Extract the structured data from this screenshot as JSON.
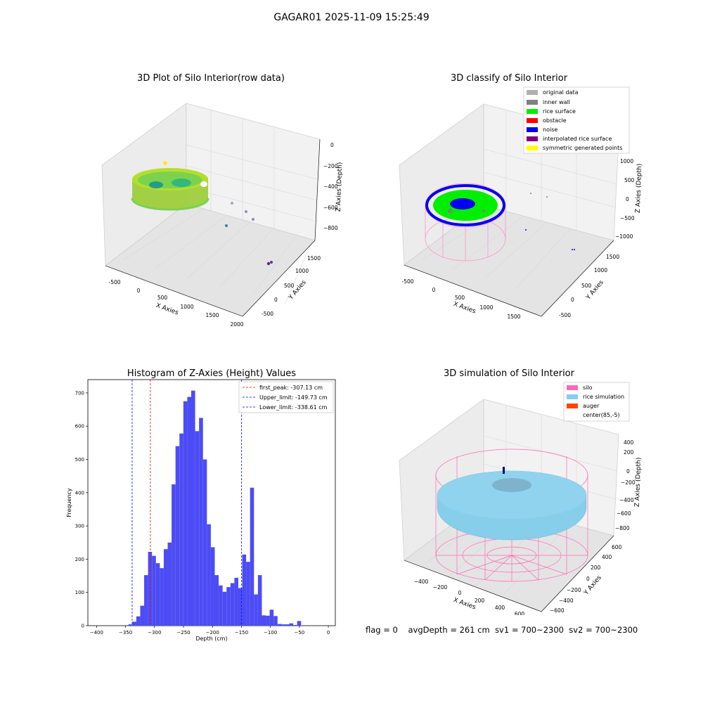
{
  "figure_title": "GAGAR01 2025-11-09 15:25:49",
  "footer": {
    "flag": "flag = 0",
    "avg_depth": "avgDepth = 261 cm",
    "sv1": "sv1 = 700~2300",
    "sv2": "sv2 = 700~2300"
  },
  "colors": {
    "histogram": "#4c4cf5",
    "first_peak": "#ff0000",
    "limits": "#0000ff",
    "silo": "#ff69b4",
    "rice_simulation": "#87ceeb",
    "auger": "#ff4500",
    "rice_surface": "#00ee00",
    "noise": "#0000ee",
    "inner_wall": "#808080",
    "original_data": "#b0b0b0",
    "obstacle": "#ff0000",
    "interpolated": "#800080",
    "symmetric": "#ffff00"
  },
  "chart_data": [
    {
      "type": "scatter",
      "title": "3D Plot of Silo Interior(row data)",
      "xlabel": "X Axies",
      "ylabel": "Y Axies",
      "zlabel": "Z Axies (Depth)",
      "x_ticks": [
        "-500",
        "0",
        "500",
        "1000",
        "1500",
        "2000"
      ],
      "y_ticks": [
        "-500",
        "0",
        "500",
        "1000",
        "1500"
      ],
      "z_ticks": [
        "0",
        "−200",
        "−400",
        "−600",
        "−800"
      ],
      "colormap": "viridis",
      "projection": "3d"
    },
    {
      "type": "scatter",
      "title": "3D classify of Silo Interior",
      "xlabel": "X Axies",
      "ylabel": "Y Axies",
      "zlabel": "Z Axies (Depth)",
      "x_ticks": [
        "-500",
        "0",
        "500",
        "1000",
        "1500"
      ],
      "y_ticks": [
        "-500",
        "0",
        "500",
        "1000",
        "1500"
      ],
      "z_ticks": [
        "1000",
        "500",
        "0",
        "−500",
        "−1000"
      ],
      "legend": [
        "original data",
        "inner wall",
        "rice surface",
        "obstacle",
        "noise",
        "interpolated rice surface",
        "symmetric generated points"
      ],
      "legend_position": "top-right",
      "projection": "3d"
    },
    {
      "type": "bar",
      "title": "Histogram of Z-Axies (Height) Values",
      "xlabel": "Depth (cm)",
      "ylabel": "Frequency",
      "x_ticks": [
        "−400",
        "−350",
        "−300",
        "−250",
        "−200",
        "−150",
        "−100",
        "−50",
        "0"
      ],
      "y_ticks": [
        "0",
        "100",
        "200",
        "300",
        "400",
        "500",
        "600",
        "700"
      ],
      "xlim": [
        -415,
        12
      ],
      "ylim": [
        0,
        740
      ],
      "bin_width": 6.77,
      "bin_start": -345.0,
      "frequencies": [
        4,
        12,
        28,
        60,
        152,
        222,
        210,
        188,
        173,
        230,
        250,
        425,
        540,
        578,
        675,
        688,
        707,
        585,
        625,
        500,
        305,
        236,
        152,
        121,
        102,
        116,
        128,
        144,
        113,
        214,
        192,
        415,
        94,
        152,
        31,
        30,
        48,
        29,
        5,
        4,
        4,
        7,
        2,
        14
      ],
      "lines": [
        {
          "label": "first_peak: -307.13 cm",
          "x": -307.13,
          "color": "#ff0000"
        },
        {
          "label": "Upper_limit: -149.73 cm",
          "x": -149.73,
          "color": "#0000ff"
        },
        {
          "label": "Lower_limit: -338.61 cm",
          "x": -338.61,
          "color": "#0000ff"
        }
      ],
      "legend_position": "top-right"
    },
    {
      "type": "scatter",
      "title": "3D simulation of Silo Interior",
      "xlabel": "X Axies",
      "ylabel": "Y Axies",
      "zlabel": "Z Axies (Depth)",
      "x_ticks": [
        "−400",
        "−200",
        "0",
        "200",
        "400",
        "600"
      ],
      "y_ticks": [
        "−600",
        "−400",
        "−200",
        "0",
        "200",
        "400",
        "600"
      ],
      "z_ticks": [
        "400",
        "200",
        "0",
        "−200",
        "−400",
        "−600",
        "−800"
      ],
      "legend": [
        "silo",
        "rice simulation",
        "auger",
        "center(85,-5)"
      ],
      "legend_position": "top-right",
      "projection": "3d"
    }
  ]
}
